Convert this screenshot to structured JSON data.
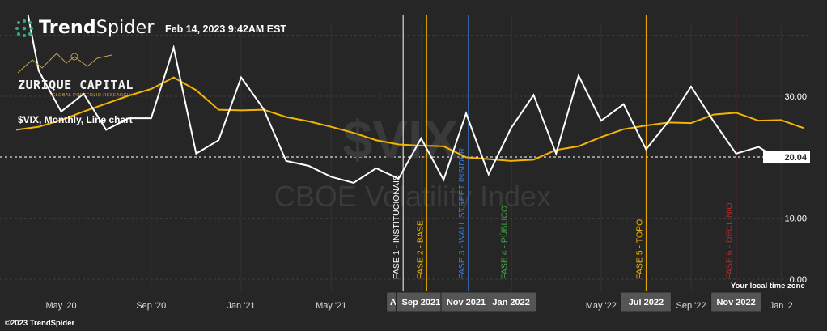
{
  "header": {
    "brand_bold": "Trend",
    "brand_light": "Spider",
    "timestamp": "Feb 14, 2023 9:42AM EST"
  },
  "logo": {
    "title": "ZURIQUE CAPITAL",
    "subtitle": "GLOBAL PORTFOLIO RESEARCH"
  },
  "subtitle": "$VIX, Monthly, Line chart",
  "footer": {
    "copyright": "©2023 TrendSpider",
    "timezone": "Your local time zone"
  },
  "watermark": {
    "symbol": "$VIX",
    "name": "CBOE Volatility Index"
  },
  "colors": {
    "background": "#262626",
    "price": "#ffffff",
    "ma": "#f5b400"
  },
  "chart_data": {
    "type": "line",
    "x": [
      "Mar '20",
      "Apr '20",
      "May '20",
      "Jun '20",
      "Jul '20",
      "Aug '20",
      "Sep '20",
      "Oct '20",
      "Nov '20",
      "Dec '20",
      "Jan '21",
      "Feb '21",
      "Mar '21",
      "Apr '21",
      "May '21",
      "Jun '21",
      "Jul '21",
      "Aug '21",
      "Sep '21",
      "Oct '21",
      "Nov '21",
      "Dec '21",
      "Jan '22",
      "Feb '22",
      "Mar '22",
      "Apr '22",
      "May '22",
      "Jun '22",
      "Jul '22",
      "Aug '22",
      "Sep '22",
      "Oct '22",
      "Nov '22",
      "Dec '22",
      "Jan '23",
      "Feb '23"
    ],
    "series": [
      {
        "name": "$VIX",
        "values": [
          53.5,
          34.2,
          27.5,
          30.4,
          24.5,
          26.4,
          26.4,
          38.0,
          20.6,
          22.8,
          33.1,
          27.9,
          19.4,
          18.6,
          16.8,
          15.8,
          18.2,
          16.5,
          23.1,
          16.3,
          27.2,
          17.2,
          24.8,
          30.2,
          20.6,
          33.4,
          26.0,
          28.7,
          21.3,
          25.9,
          31.6,
          25.9,
          20.6,
          21.7,
          19.4,
          20.04
        ]
      },
      {
        "name": "",
        "values": [
          24.5,
          25.0,
          26.1,
          27.5,
          28.8,
          30.1,
          31.2,
          33.1,
          31.0,
          27.8,
          27.7,
          27.8,
          26.6,
          25.9,
          25.0,
          24.0,
          22.8,
          22.1,
          21.9,
          21.8,
          20.0,
          19.7,
          19.4,
          19.6,
          21.2,
          21.8,
          23.3,
          24.6,
          25.2,
          25.7,
          25.6,
          27.0,
          27.3,
          26.0,
          26.1,
          24.8
        ]
      }
    ],
    "y_ticks": [
      "0.00",
      "10.00",
      "20.00",
      "30.00"
    ],
    "ylim": [
      -1.2,
      41.5
    ],
    "x_tick_labels": [
      {
        "label": "May '20",
        "index": 2
      },
      {
        "label": "Sep '20",
        "index": 6
      },
      {
        "label": "Jan '21",
        "index": 10
      },
      {
        "label": "May '21",
        "index": 14
      },
      {
        "label": "Sep '21",
        "index": 18
      },
      {
        "label": "Jan '22",
        "index": 22
      },
      {
        "label": "May '22",
        "index": 26
      },
      {
        "label": "Sep '22",
        "index": 30
      },
      {
        "label": "Jan '2",
        "index": 34
      }
    ],
    "x_highlight_labels": [
      {
        "label": "Aug",
        "index": 17
      },
      {
        "label": "Sep 2021",
        "index": 18
      },
      {
        "label": "Nov 2021",
        "index": 20
      },
      {
        "label": "Jan 2022",
        "index": 22
      },
      {
        "label": "Jul 2022",
        "index": 28
      },
      {
        "label": "Nov 2022",
        "index": 32
      }
    ],
    "current_value": "20.04",
    "current_value_num": 20.04,
    "phases": [
      {
        "label": "FASE 1 - INSTITUCIONAIS",
        "index": 17.2,
        "color": "#ffffff"
      },
      {
        "label": "FASE 2 - BASE",
        "index": 18.25,
        "color": "#f5b400"
      },
      {
        "label": "FASE 3 - WALL STREET INSIDER",
        "index": 20.1,
        "color": "#3a7bd5"
      },
      {
        "label": "FASE 4 - PÚBLICO",
        "index": 22.0,
        "color": "#3fa83f"
      },
      {
        "label": "FASE 5 - TOPO",
        "index": 28.0,
        "color": "#f5b400"
      },
      {
        "label": "FASE 6 - DECLÍNIO",
        "index": 32.0,
        "color": "#c0282a"
      }
    ]
  }
}
